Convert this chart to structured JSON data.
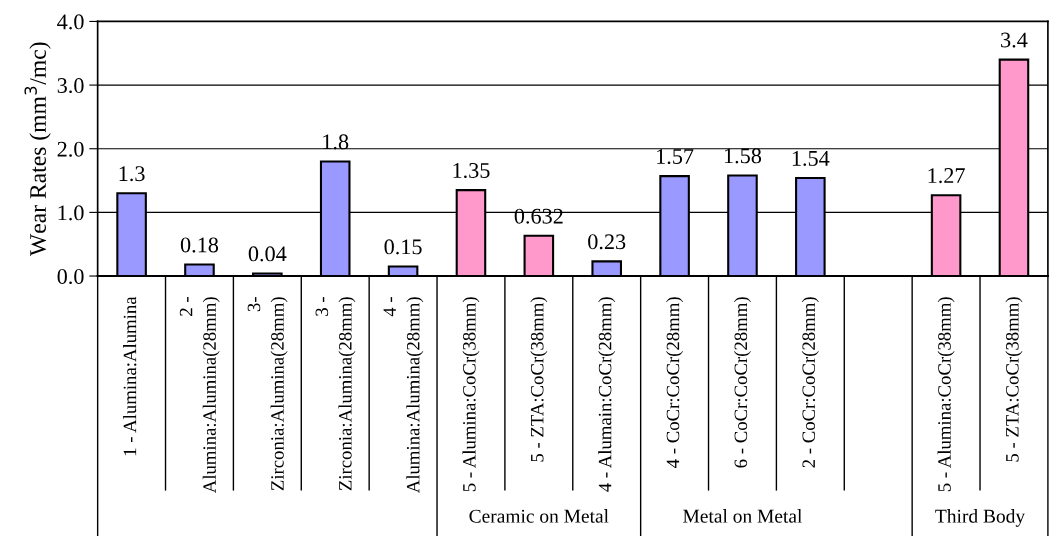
{
  "chart_data": {
    "type": "bar",
    "ylabel": "Wear Rates (mm$^{3}$/mc)",
    "categories": [
      "1 - Alumina:Alumina",
      "2 -\nAlumina:Alumina(28mm)",
      "3-\nZirconia:Alumina(28mm)",
      "3 -\nZirconia:Alumina(28mm)",
      "4 -\nAlumina:Alumina(28mm)",
      "5 - Alumina:CoCr(38mm)",
      "5 - ZTA:CoCr(38mm)",
      "4 - Alumain:CoCr(28mm)",
      "4 - CoCr:CoCr(28mm)",
      "6 - CoCr:CoCr(28mm)",
      "2 - CoCr:CoCr(28mm)",
      null,
      "5 - Alumina:CoCr(38mm)",
      "5 - ZTA:CoCr(38mm)"
    ],
    "values": [
      1.3,
      0.18,
      0.04,
      1.8,
      0.15,
      1.35,
      0.632,
      0.23,
      1.57,
      1.58,
      1.54,
      null,
      1.27,
      3.4
    ],
    "colors": [
      "#9999ff",
      "#9999ff",
      "#9999ff",
      "#9999ff",
      "#9999ff",
      "#ff99cc",
      "#ff99cc",
      "#9999ff",
      "#9999ff",
      "#9999ff",
      "#9999ff",
      "#9999ff",
      "#ff99cc",
      "#ff99cc"
    ],
    "ylim": [
      0,
      4
    ],
    "yticks": [
      {
        "value": 0,
        "label": "0.0"
      },
      {
        "value": 1,
        "label": "1.0"
      },
      {
        "value": 2,
        "label": "2.0"
      },
      {
        "value": 3,
        "label": "3.0"
      },
      {
        "value": 4,
        "label": "4.0"
      }
    ],
    "grid": "y",
    "data_labels": true,
    "annotations": [
      "Ceramic on Metal",
      "Metal on Metal",
      "Third Body"
    ]
  }
}
